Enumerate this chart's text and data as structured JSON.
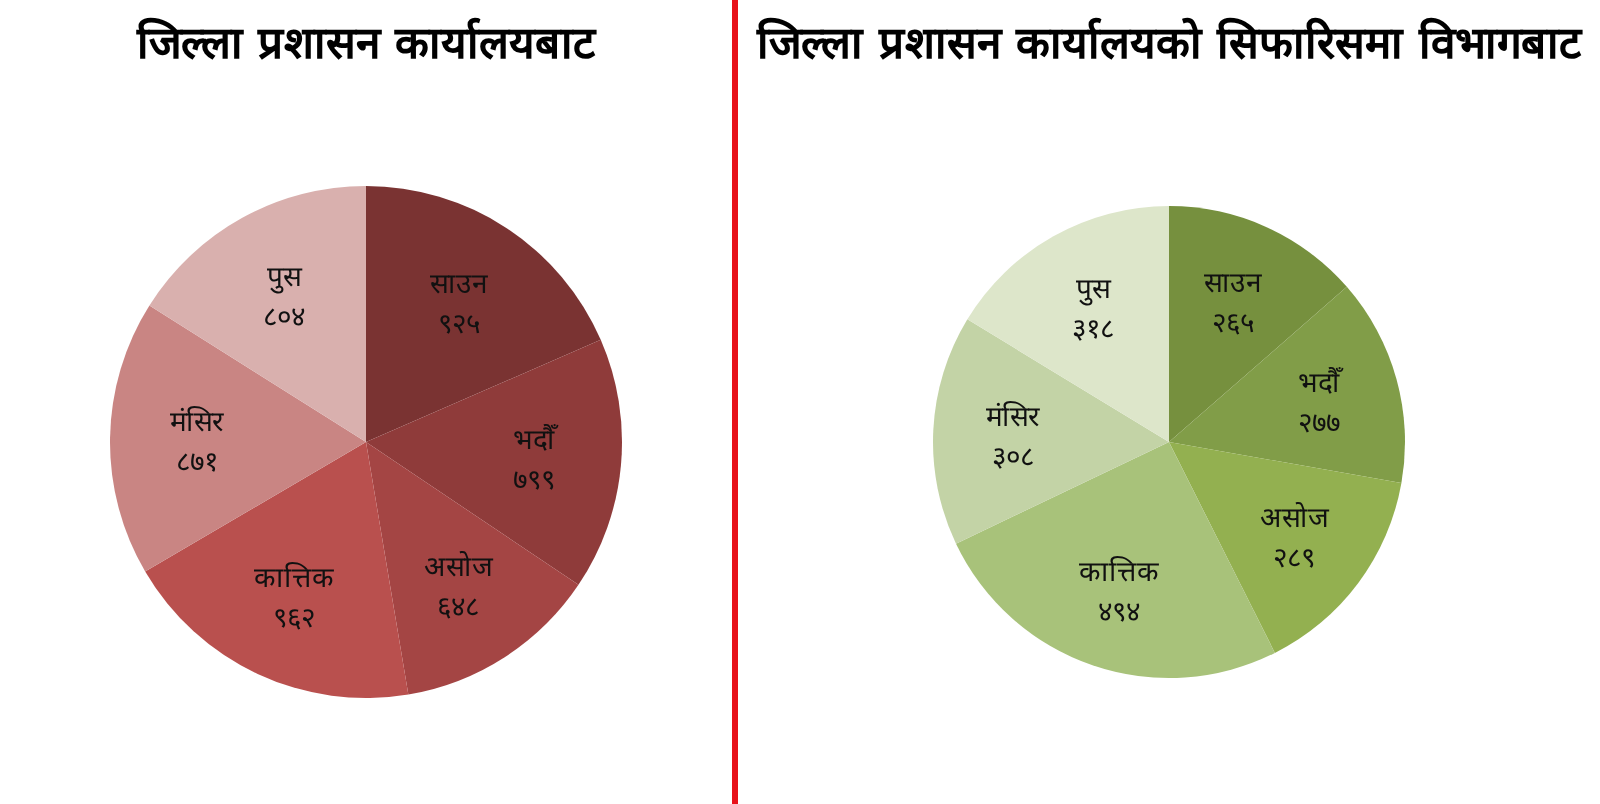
{
  "chart_data": [
    {
      "type": "pie",
      "title": "जिल्ला प्रशासन कार्यालयबाट",
      "categories": [
        "साउन",
        "भदौँ",
        "असोज",
        "कात्तिक",
        "मंसिर",
        "पुस"
      ],
      "values": [
        925,
        799,
        648,
        962,
        871,
        804
      ],
      "value_labels": [
        "९२५",
        "७९९",
        "६४८",
        "९६२",
        "८७१",
        "८०४"
      ],
      "colors": [
        "#7a3332",
        "#8f3b3a",
        "#a44544",
        "#b9504e",
        "#c98583",
        "#d9b0ae"
      ]
    },
    {
      "type": "pie",
      "title": "जिल्ला प्रशासन कार्यालयको सिफारिसमा विभागबाट",
      "categories": [
        "साउन",
        "भदौँ",
        "असोज",
        "कात्तिक",
        "मंसिर",
        "पुस"
      ],
      "values": [
        265,
        277,
        289,
        494,
        308,
        318
      ],
      "value_labels": [
        "२६५",
        "२७७",
        "२८९",
        "४९४",
        "३०८",
        "३१८"
      ],
      "colors": [
        "#76903e",
        "#819d48",
        "#93b050",
        "#a8c27a",
        "#c3d3a6",
        "#dde6ca"
      ]
    }
  ]
}
